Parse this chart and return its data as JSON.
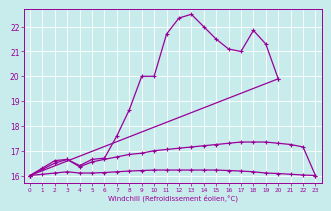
{
  "xlabel": "Windchill (Refroidissement éolien,°C)",
  "bg_color": "#c8ecec",
  "line_color": "#990099",
  "xlim": [
    -0.5,
    23.5
  ],
  "ylim": [
    15.7,
    22.7
  ],
  "xticks": [
    0,
    1,
    2,
    3,
    4,
    5,
    6,
    7,
    8,
    9,
    10,
    11,
    12,
    13,
    14,
    15,
    16,
    17,
    18,
    19,
    20,
    21,
    22,
    23
  ],
  "yticks": [
    16,
    17,
    18,
    19,
    20,
    21,
    22
  ],
  "line1_x": [
    0,
    1,
    2,
    3,
    4,
    5,
    6,
    7,
    8,
    9,
    10,
    11,
    12,
    13,
    14,
    15,
    16,
    17,
    18,
    19,
    20
  ],
  "line1_y": [
    16.0,
    16.3,
    16.6,
    16.65,
    16.4,
    16.65,
    16.7,
    17.6,
    18.65,
    20.0,
    20.0,
    21.7,
    22.35,
    22.5,
    22.0,
    21.5,
    21.1,
    21.0,
    21.85,
    21.3,
    19.9
  ],
  "line2_x": [
    0,
    1,
    2,
    3,
    4,
    5,
    6,
    7,
    8,
    9,
    10,
    11,
    12,
    13,
    14,
    15,
    16,
    17,
    18,
    19,
    20,
    21,
    22,
    23
  ],
  "line2_y": [
    16.0,
    16.25,
    16.5,
    16.65,
    16.35,
    16.55,
    16.65,
    16.75,
    16.85,
    16.9,
    17.0,
    17.05,
    17.1,
    17.15,
    17.2,
    17.25,
    17.3,
    17.35,
    17.35,
    17.35,
    17.3,
    17.25,
    17.15,
    16.0
  ],
  "line3_x": [
    0,
    1,
    2,
    3,
    4,
    5,
    6,
    7,
    8,
    9,
    10,
    11,
    12,
    13,
    14,
    15,
    16,
    17,
    18,
    19,
    20,
    21,
    22,
    23
  ],
  "line3_y": [
    16.0,
    16.05,
    16.1,
    16.15,
    16.1,
    16.1,
    16.12,
    16.15,
    16.18,
    16.2,
    16.22,
    16.22,
    16.22,
    16.22,
    16.22,
    16.22,
    16.2,
    16.18,
    16.15,
    16.1,
    16.08,
    16.05,
    16.02,
    16.0
  ],
  "line4_x": [
    0,
    20
  ],
  "line4_y": [
    16.0,
    19.9
  ]
}
